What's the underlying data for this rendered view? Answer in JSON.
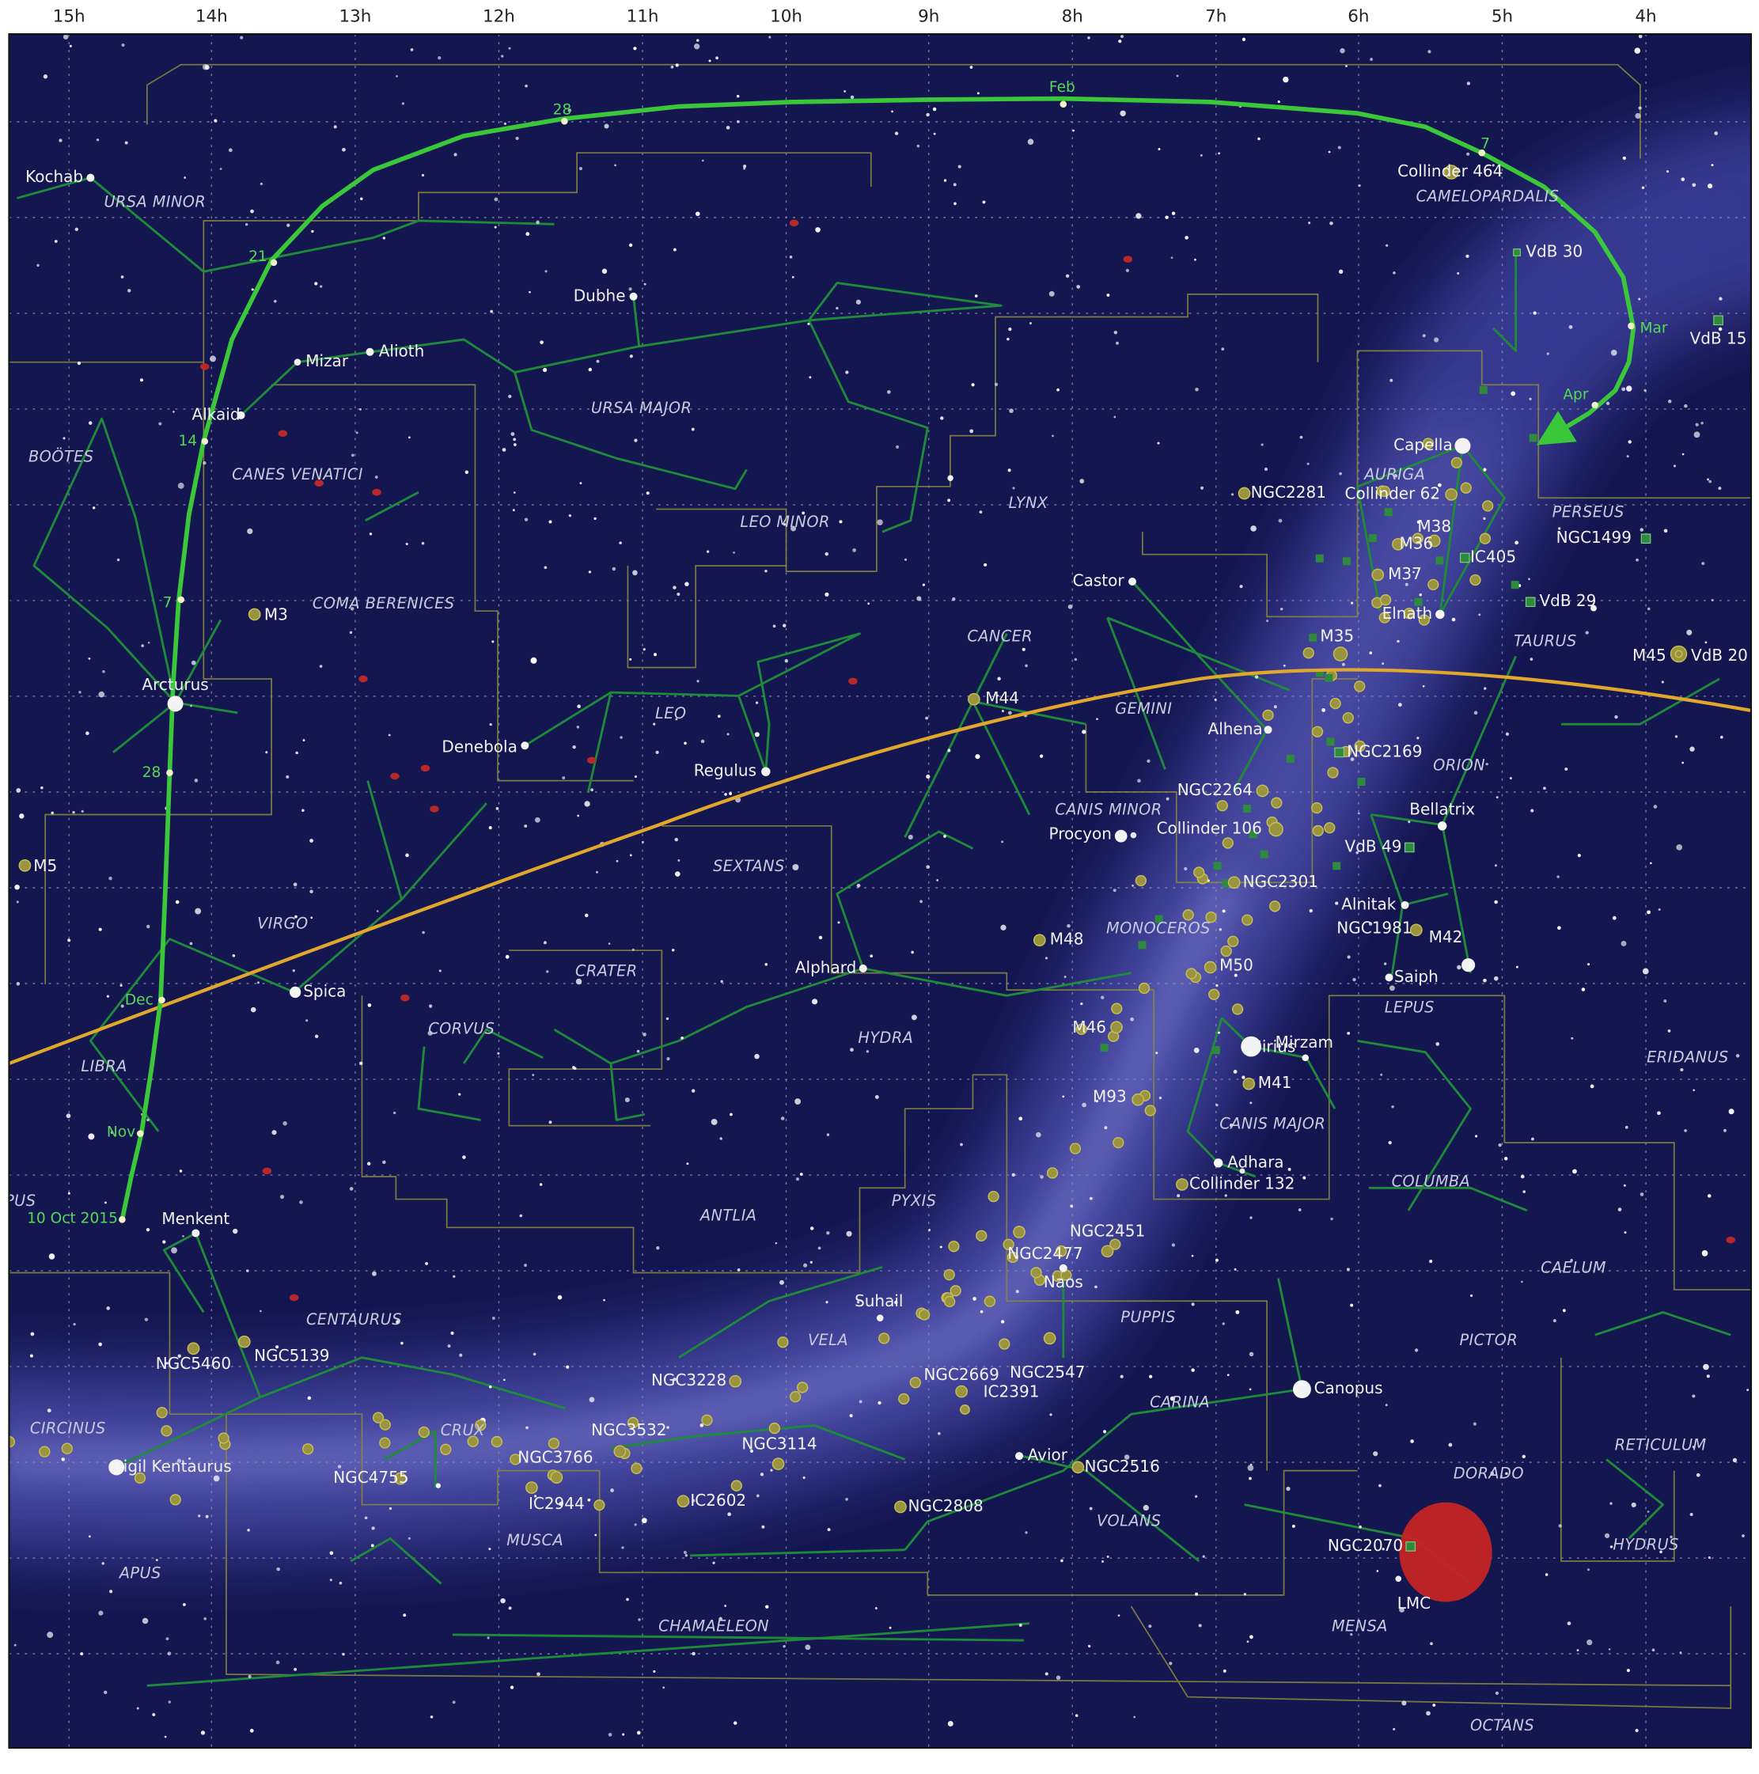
{
  "ra_labels": [
    "15h",
    "14h",
    "13h",
    "12h",
    "11h",
    "10h",
    "9h",
    "8h",
    "7h",
    "6h",
    "5h",
    "4h"
  ],
  "constellations": [
    "URSA MINOR",
    "CAMELOPARDALIS",
    "BOÖTES",
    "CANES VENATICI",
    "URSA MAJOR",
    "LEO MINOR",
    "LYNX",
    "AURIGA",
    "PERSEUS",
    "COMA BERENICES",
    "CANCER",
    "TAURUS",
    "LEO",
    "GEMINI",
    "ORION",
    "CANIS MINOR",
    "SEXTANS",
    "VIRGO",
    "MONOCEROS",
    "CRATER",
    "LEPUS",
    "CORVUS",
    "HYDRA",
    "ERIDANUS",
    "LIBRA",
    "CANIS MAJOR",
    "COLUMBA",
    "PUS",
    "PYXIS",
    "ANTLIA",
    "CAELUM",
    "CENTAURUS",
    "PUPPIS",
    "VELA",
    "PICTOR",
    "CARINA",
    "CIRCINUS",
    "CRUX",
    "RETICULUM",
    "DORADO",
    "VOLANS",
    "MUSCA",
    "HYDRUS",
    "APUS",
    "MENSA",
    "CHAMAELEON",
    "OCTANS"
  ],
  "objects": [
    "Kochab",
    "Collinder 464",
    "VdB 30",
    "Dubhe",
    "Mizar",
    "Alioth",
    "VdB 15",
    "Alkaid",
    "Capella",
    "NGC2281",
    "Collinder 62",
    "M38",
    "M36",
    "IC405",
    "NGC1499",
    "M37",
    "Castor",
    "VdB 29",
    "M3",
    "Elnath",
    "M35",
    "M45",
    "VdB 20",
    "Arcturus",
    "M44",
    "Alhena",
    "NGC2169",
    "Denebola",
    "Regulus",
    "NGC2264",
    "Bellatrix",
    "Procyon",
    "Collinder 106",
    "VdB 49",
    "M5",
    "NGC2301",
    "Alnitak",
    "NGC1981",
    "M42",
    "M48",
    "Alphard",
    "M50",
    "Saiph",
    "Spica",
    "M46",
    "Sirius",
    "Mirzam",
    "M41",
    "M93",
    "Adhara",
    "Collinder 132",
    "NGC2451",
    "NGC2477",
    "Naos",
    "Menkent",
    "Suhail",
    "NGC5460",
    "NGC5139",
    "NGC2669",
    "NGC2547",
    "IC2391",
    "Canopus",
    "NGC3228",
    "NGC3532",
    "NGC3114",
    "Avior",
    "NGC3766",
    "NGC2516",
    "Rigil Kentaurus",
    "NGC4755",
    "IC2944",
    "IC2602",
    "NGC2808",
    "NGC2070",
    "LMC"
  ],
  "comet_dates": [
    "Feb",
    "28",
    "7",
    "21",
    "Mar",
    "Apr",
    "14",
    "7",
    "28",
    "Dec",
    "Nov",
    "10 Oct 2015"
  ]
}
